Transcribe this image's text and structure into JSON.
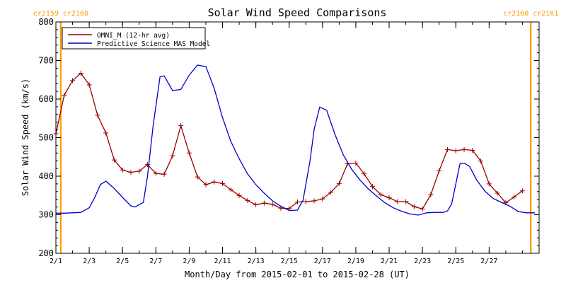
{
  "chart_data": {
    "type": "line",
    "title": "Solar Wind Speed Comparisons",
    "xlabel": "Month/Day from 2015-02-01 to 2015-02-28 (UT)",
    "ylabel": "Solar Wind Speed (km/s)",
    "xlim": [
      "2015-02-01",
      "2015-03-02"
    ],
    "ylim": [
      200,
      800
    ],
    "y_ticks": [
      200,
      300,
      400,
      500,
      600,
      700,
      800
    ],
    "x_ticks": [
      {
        "label": "2/1",
        "date": "2015-02-01"
      },
      {
        "label": "2/3",
        "date": "2015-02-03"
      },
      {
        "label": "2/5",
        "date": "2015-02-05"
      },
      {
        "label": "2/7",
        "date": "2015-02-07"
      },
      {
        "label": "2/9",
        "date": "2015-02-09"
      },
      {
        "label": "2/11",
        "date": "2015-02-11"
      },
      {
        "label": "2/13",
        "date": "2015-02-13"
      },
      {
        "label": "2/15",
        "date": "2015-02-15"
      },
      {
        "label": "2/17",
        "date": "2015-02-17"
      },
      {
        "label": "2/19",
        "date": "2015-02-19"
      },
      {
        "label": "2/21",
        "date": "2015-02-21"
      },
      {
        "label": "2/23",
        "date": "2015-02-23"
      },
      {
        "label": "2/25",
        "date": "2015-02-25"
      },
      {
        "label": "2/27",
        "date": "2015-02-27"
      }
    ],
    "grid": false,
    "legend": "top-left",
    "rotation_markers": [
      {
        "date": "2015-02-01 07:00",
        "left_label": "cr2159",
        "right_label": "cr2160",
        "color": "#ff9900"
      },
      {
        "date": "2015-03-01 12:00",
        "left_label": "cr2160",
        "right_label": "cr2161",
        "color": "#ff9900"
      }
    ],
    "series": [
      {
        "name": "OMNI_M (12-hr avg)",
        "color": "#990000",
        "marker": "plus",
        "points": [
          [
            "2015-02-01 00:00",
            510
          ],
          [
            "2015-02-01 12:00",
            610
          ],
          [
            "2015-02-02 00:00",
            648
          ],
          [
            "2015-02-02 12:00",
            667
          ],
          [
            "2015-02-03 00:00",
            637
          ],
          [
            "2015-02-03 12:00",
            558
          ],
          [
            "2015-02-04 00:00",
            512
          ],
          [
            "2015-02-04 12:00",
            442
          ],
          [
            "2015-02-05 00:00",
            416
          ],
          [
            "2015-02-05 12:00",
            410
          ],
          [
            "2015-02-06 00:00",
            413
          ],
          [
            "2015-02-06 12:00",
            430
          ],
          [
            "2015-02-07 00:00",
            407
          ],
          [
            "2015-02-07 12:00",
            405
          ],
          [
            "2015-02-08 00:00",
            453
          ],
          [
            "2015-02-08 12:00",
            531
          ],
          [
            "2015-02-09 00:00",
            460
          ],
          [
            "2015-02-09 12:00",
            398
          ],
          [
            "2015-02-10 00:00",
            378
          ],
          [
            "2015-02-10 12:00",
            385
          ],
          [
            "2015-02-11 00:00",
            381
          ],
          [
            "2015-02-11 12:00",
            365
          ],
          [
            "2015-02-12 00:00",
            350
          ],
          [
            "2015-02-12 12:00",
            337
          ],
          [
            "2015-02-13 00:00",
            326
          ],
          [
            "2015-02-13 12:00",
            330
          ],
          [
            "2015-02-14 00:00",
            327
          ],
          [
            "2015-02-14 12:00",
            317
          ],
          [
            "2015-02-15 00:00",
            316
          ],
          [
            "2015-02-15 12:00",
            333
          ],
          [
            "2015-02-16 00:00",
            334
          ],
          [
            "2015-02-16 12:00",
            336
          ],
          [
            "2015-02-17 00:00",
            341
          ],
          [
            "2015-02-17 12:00",
            358
          ],
          [
            "2015-02-18 00:00",
            381
          ],
          [
            "2015-02-18 12:00",
            432
          ],
          [
            "2015-02-19 00:00",
            434
          ],
          [
            "2015-02-19 12:00",
            406
          ],
          [
            "2015-02-20 00:00",
            373
          ],
          [
            "2015-02-20 12:00",
            352
          ],
          [
            "2015-02-21 00:00",
            344
          ],
          [
            "2015-02-21 12:00",
            334
          ],
          [
            "2015-02-22 00:00",
            334
          ],
          [
            "2015-02-22 12:00",
            321
          ],
          [
            "2015-02-23 00:00",
            315
          ],
          [
            "2015-02-23 12:00",
            352
          ],
          [
            "2015-02-24 00:00",
            414
          ],
          [
            "2015-02-24 12:00",
            469
          ],
          [
            "2015-02-25 00:00",
            466
          ],
          [
            "2015-02-25 12:00",
            469
          ],
          [
            "2015-02-26 00:00",
            467
          ],
          [
            "2015-02-26 12:00",
            439
          ],
          [
            "2015-02-27 00:00",
            380
          ],
          [
            "2015-02-27 12:00",
            356
          ],
          [
            "2015-02-28 00:00",
            331
          ],
          [
            "2015-02-28 12:00",
            346
          ],
          [
            "2015-03-01 00:00",
            362
          ]
        ]
      },
      {
        "name": "Predictive Science MAS Model",
        "color": "#0000cc",
        "marker": "none",
        "points": [
          [
            "2015-02-01 00:00",
            304
          ],
          [
            "2015-02-01 12:00",
            304
          ],
          [
            "2015-02-02 00:00",
            305
          ],
          [
            "2015-02-02 12:00",
            306
          ],
          [
            "2015-02-03 00:00",
            318
          ],
          [
            "2015-02-03 08:00",
            345
          ],
          [
            "2015-02-03 16:00",
            378
          ],
          [
            "2015-02-04 00:00",
            387
          ],
          [
            "2015-02-04 12:00",
            368
          ],
          [
            "2015-02-05 00:00",
            345
          ],
          [
            "2015-02-05 12:00",
            323
          ],
          [
            "2015-02-05 18:00",
            320
          ],
          [
            "2015-02-06 06:00",
            332
          ],
          [
            "2015-02-06 12:00",
            400
          ],
          [
            "2015-02-06 20:00",
            530
          ],
          [
            "2015-02-07 06:00",
            658
          ],
          [
            "2015-02-07 12:00",
            660
          ],
          [
            "2015-02-08 00:00",
            622
          ],
          [
            "2015-02-08 12:00",
            625
          ],
          [
            "2015-02-09 00:00",
            662
          ],
          [
            "2015-02-09 12:00",
            688
          ],
          [
            "2015-02-10 00:00",
            684
          ],
          [
            "2015-02-10 12:00",
            628
          ],
          [
            "2015-02-11 00:00",
            552
          ],
          [
            "2015-02-11 12:00",
            490
          ],
          [
            "2015-02-12 00:00",
            445
          ],
          [
            "2015-02-12 12:00",
            406
          ],
          [
            "2015-02-13 00:00",
            378
          ],
          [
            "2015-02-13 12:00",
            356
          ],
          [
            "2015-02-14 00:00",
            336
          ],
          [
            "2015-02-14 12:00",
            322
          ],
          [
            "2015-02-15 00:00",
            311
          ],
          [
            "2015-02-15 12:00",
            312
          ],
          [
            "2015-02-15 20:00",
            338
          ],
          [
            "2015-02-16 06:00",
            440
          ],
          [
            "2015-02-16 12:00",
            522
          ],
          [
            "2015-02-16 20:00",
            579
          ],
          [
            "2015-02-17 06:00",
            571
          ],
          [
            "2015-02-17 18:00",
            508
          ],
          [
            "2015-02-18 06:00",
            455
          ],
          [
            "2015-02-18 18:00",
            418
          ],
          [
            "2015-02-19 06:00",
            390
          ],
          [
            "2015-02-19 18:00",
            367
          ],
          [
            "2015-02-20 06:00",
            348
          ],
          [
            "2015-02-20 18:00",
            331
          ],
          [
            "2015-02-21 06:00",
            318
          ],
          [
            "2015-02-21 18:00",
            309
          ],
          [
            "2015-02-22 06:00",
            302
          ],
          [
            "2015-02-22 18:00",
            299
          ],
          [
            "2015-02-23 06:00",
            305
          ],
          [
            "2015-02-23 18:00",
            306
          ],
          [
            "2015-02-24 06:00",
            306
          ],
          [
            "2015-02-24 12:00",
            310
          ],
          [
            "2015-02-24 18:00",
            328
          ],
          [
            "2015-02-25 06:00",
            432
          ],
          [
            "2015-02-25 12:00",
            434
          ],
          [
            "2015-02-25 20:00",
            425
          ],
          [
            "2015-02-26 06:00",
            390
          ],
          [
            "2015-02-26 18:00",
            361
          ],
          [
            "2015-02-27 06:00",
            342
          ],
          [
            "2015-02-27 18:00",
            332
          ],
          [
            "2015-02-28 06:00",
            322
          ],
          [
            "2015-02-28 18:00",
            308
          ],
          [
            "2015-03-01 06:00",
            305
          ],
          [
            "2015-03-01 18:00",
            305
          ]
        ]
      }
    ]
  }
}
